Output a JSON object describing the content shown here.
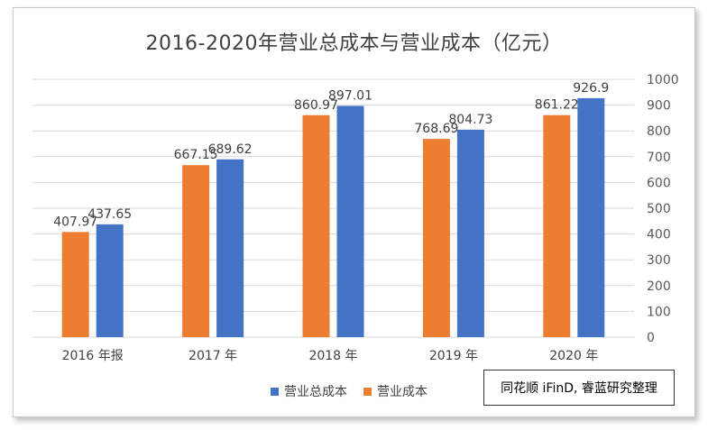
{
  "chart_data": {
    "type": "bar",
    "title": "2016-2020年营业总成本与营业成本（亿元）",
    "categories": [
      "2016 年报",
      "2017 年",
      "2018 年",
      "2019 年",
      "2020 年"
    ],
    "series": [
      {
        "name": "营业成本",
        "color": "#ED7D31",
        "values": [
          407.97,
          667.15,
          860.97,
          768.69,
          861.22
        ],
        "labels": [
          "407.97",
          "667.15",
          "860.97",
          "768.69",
          "861.22"
        ]
      },
      {
        "name": "营业总成本",
        "color": "#4472C4",
        "values": [
          437.65,
          689.62,
          897.01,
          804.73,
          926.9
        ],
        "labels": [
          "437.65",
          "689.62",
          "897.01",
          "804.73",
          "926.9"
        ]
      }
    ],
    "legend_order": [
      "营业总成本",
      "营业成本"
    ],
    "ylim": [
      0,
      1000
    ],
    "yticks": [
      0,
      100,
      200,
      300,
      400,
      500,
      600,
      700,
      800,
      900,
      1000
    ],
    "y_axis_side": "right",
    "grid": true,
    "legend_position": "bottom"
  },
  "source_note": "同花顺 iFinD, 睿蓝研究整理",
  "legend": {
    "total_cost": "营业总成本",
    "cost": "营业成本"
  }
}
